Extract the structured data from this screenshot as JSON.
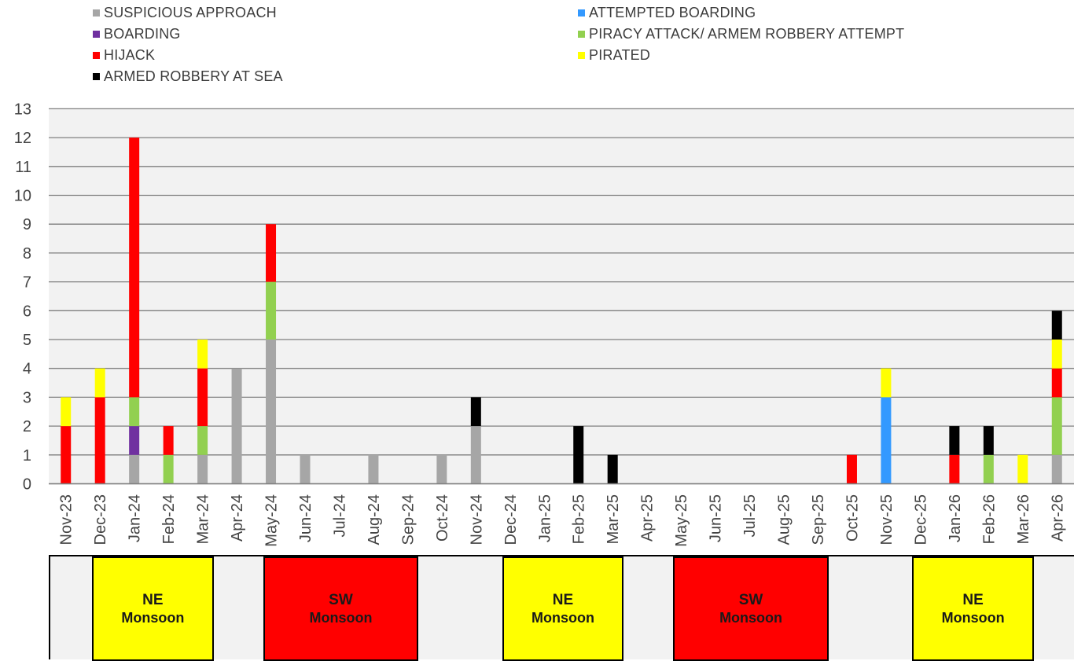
{
  "chart_data": {
    "type": "bar",
    "stacked": true,
    "categories": [
      "Nov-23",
      "Dec-23",
      "Jan-24",
      "Feb-24",
      "Mar-24",
      "Apr-24",
      "May-24",
      "Jun-24",
      "Jul-24",
      "Aug-24",
      "Sep-24",
      "Oct-24",
      "Nov-24",
      "Dec-24",
      "Jan-25",
      "Feb-25",
      "Mar-25",
      "Apr-25",
      "May-25",
      "Jun-25",
      "Jul-25",
      "Aug-25",
      "Sep-25",
      "Oct-25",
      "Nov-25",
      "Dec-25",
      "Jan-26",
      "Feb-26",
      "Mar-26",
      "Apr-26"
    ],
    "series": [
      {
        "name": "SUSPICIOUS APPROACH",
        "color": "#a6a6a6",
        "values": [
          0,
          0,
          1,
          0,
          1,
          4,
          5,
          1,
          0,
          1,
          0,
          1,
          2,
          0,
          0,
          0,
          0,
          0,
          0,
          0,
          0,
          0,
          0,
          0,
          0,
          0,
          0,
          0,
          0,
          1
        ]
      },
      {
        "name": "ATTEMPTED BOARDING",
        "color": "#3399ff",
        "values": [
          0,
          0,
          0,
          0,
          0,
          0,
          0,
          0,
          0,
          0,
          0,
          0,
          0,
          0,
          0,
          0,
          0,
          0,
          0,
          0,
          0,
          0,
          0,
          0,
          3,
          0,
          0,
          0,
          0,
          0
        ]
      },
      {
        "name": "BOARDING",
        "color": "#7030a0",
        "values": [
          0,
          0,
          1,
          0,
          0,
          0,
          0,
          0,
          0,
          0,
          0,
          0,
          0,
          0,
          0,
          0,
          0,
          0,
          0,
          0,
          0,
          0,
          0,
          0,
          0,
          0,
          0,
          0,
          0,
          0
        ]
      },
      {
        "name": "PIRACY ATTACK/ ARMEM ROBBERY ATTEMPT",
        "color": "#92d050",
        "values": [
          0,
          0,
          1,
          1,
          1,
          0,
          2,
          0,
          0,
          0,
          0,
          0,
          0,
          0,
          0,
          0,
          0,
          0,
          0,
          0,
          0,
          0,
          0,
          0,
          0,
          0,
          0,
          1,
          0,
          2
        ]
      },
      {
        "name": "HIJACK",
        "color": "#ff0000",
        "values": [
          2,
          3,
          9,
          1,
          2,
          0,
          2,
          0,
          0,
          0,
          0,
          0,
          0,
          0,
          0,
          0,
          0,
          0,
          0,
          0,
          0,
          0,
          0,
          1,
          0,
          0,
          1,
          0,
          0,
          1
        ]
      },
      {
        "name": "PIRATED",
        "color": "#ffff00",
        "values": [
          1,
          1,
          0,
          0,
          1,
          0,
          0,
          0,
          0,
          0,
          0,
          0,
          0,
          0,
          0,
          0,
          0,
          0,
          0,
          0,
          0,
          0,
          0,
          0,
          1,
          0,
          0,
          0,
          1,
          1
        ]
      },
      {
        "name": "ARMED ROBBERY AT SEA",
        "color": "#000000",
        "values": [
          0,
          0,
          0,
          0,
          0,
          0,
          0,
          0,
          0,
          0,
          0,
          0,
          1,
          0,
          0,
          2,
          1,
          0,
          0,
          0,
          0,
          0,
          0,
          0,
          0,
          0,
          1,
          1,
          0,
          1
        ]
      }
    ],
    "ylim": [
      0,
      13
    ],
    "yticks": [
      0,
      1,
      2,
      3,
      4,
      5,
      6,
      7,
      8,
      9,
      10,
      11,
      12,
      13
    ],
    "grid": true,
    "legend_position": "top",
    "title": "",
    "xlabel": "",
    "ylabel": ""
  },
  "legend": [
    {
      "label": "SUSPICIOUS APPROACH",
      "color": "#a6a6a6"
    },
    {
      "label": "ATTEMPTED BOARDING",
      "color": "#3399ff"
    },
    {
      "label": "BOARDING",
      "color": "#7030a0"
    },
    {
      "label": "PIRACY ATTACK/ ARMEM ROBBERY ATTEMPT",
      "color": "#92d050"
    },
    {
      "label": "HIJACK",
      "color": "#ff0000"
    },
    {
      "label": "PIRATED",
      "color": "#ffff00"
    },
    {
      "label": "ARMED ROBBERY AT SEA",
      "color": "#000000"
    }
  ],
  "monsoons": [
    {
      "line1": "NE",
      "line2": "Monsoon",
      "color": "#ffff00",
      "from": "Dec-23",
      "to": "Mar-24"
    },
    {
      "line1": "SW",
      "line2": "Monsoon",
      "color": "#ff0000",
      "from": "May-24",
      "to": "Sep-24"
    },
    {
      "line1": "NE",
      "line2": "Monsoon",
      "color": "#ffff00",
      "from": "Dec-24",
      "to": "Mar-25"
    },
    {
      "line1": "SW",
      "line2": "Monsoon",
      "color": "#ff0000",
      "from": "May-25",
      "to": "Sep-25"
    },
    {
      "line1": "NE",
      "line2": "Monsoon",
      "color": "#ffff00",
      "from": "Dec-25",
      "to": "Mar-26"
    }
  ]
}
